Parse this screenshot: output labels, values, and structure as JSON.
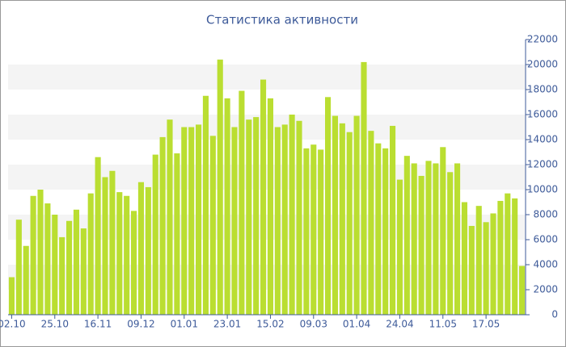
{
  "chart_data": {
    "type": "bar",
    "title": "Статистика активности",
    "categories": [
      "02.10",
      null,
      null,
      null,
      null,
      null,
      "25.10",
      null,
      null,
      null,
      null,
      null,
      "16.11",
      null,
      null,
      null,
      null,
      null,
      "09.12",
      null,
      null,
      null,
      null,
      null,
      "01.01",
      null,
      null,
      null,
      null,
      null,
      "23.01",
      null,
      null,
      null,
      null,
      null,
      "15.02",
      null,
      null,
      null,
      null,
      null,
      "09.03",
      null,
      null,
      null,
      null,
      null,
      "01.04",
      null,
      null,
      null,
      null,
      null,
      "24.04",
      null,
      null,
      null,
      null,
      null,
      "11.05",
      null,
      null,
      null,
      null,
      null,
      "17.05",
      null,
      null,
      null,
      null,
      null
    ],
    "values": [
      3000,
      7600,
      5500,
      9500,
      10000,
      8900,
      8000,
      6200,
      7500,
      8400,
      6900,
      9700,
      12600,
      11000,
      11500,
      9800,
      9500,
      8300,
      10600,
      10200,
      12800,
      14200,
      15600,
      12900,
      15000,
      15000,
      15200,
      17500,
      14300,
      20400,
      17300,
      15000,
      17900,
      15600,
      15800,
      18800,
      17300,
      15000,
      15200,
      16000,
      15500,
      13300,
      13600,
      13200,
      17400,
      15900,
      15300,
      14600,
      15900,
      20200,
      14700,
      13700,
      13300,
      15100,
      10800,
      12700,
      12100,
      11100,
      12300,
      12100,
      13400,
      11400,
      12100,
      9000,
      7100,
      8700,
      7400,
      8100,
      9100,
      9700,
      9300,
      3900
    ],
    "color": "#bade31",
    "ylim": [
      0,
      22000
    ],
    "yticks": [
      0,
      2000,
      4000,
      6000,
      8000,
      10000,
      12000,
      14000,
      16000,
      18000,
      20000,
      22000
    ],
    "bands": true
  }
}
